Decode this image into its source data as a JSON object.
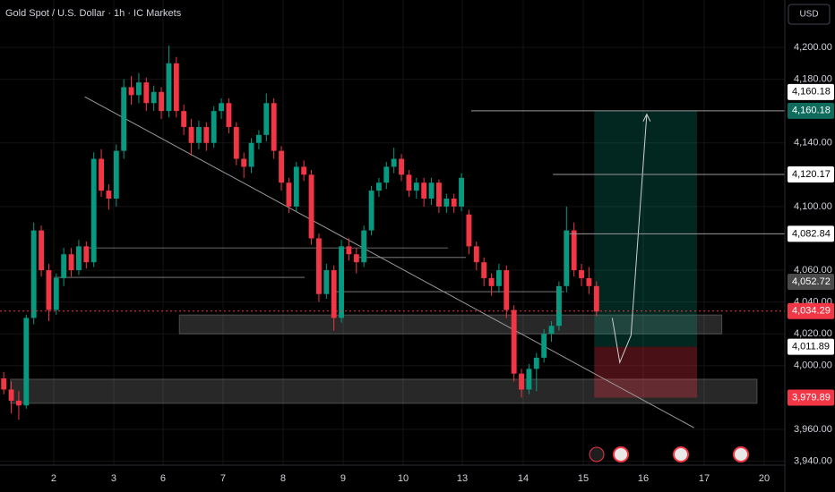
{
  "chart_data": {
    "type": "candlestick",
    "title": "Gold Spot / U.S. Dollar · 1h · IC Markets",
    "currency": "USD",
    "ylim": [
      3920.6,
      4229.8
    ],
    "xlim": [
      0,
      104.6
    ],
    "grid": true,
    "up_color": "#089981",
    "down_color": "#f23645",
    "yticks": [
      {
        "value": 4200,
        "label": "4,200.00"
      },
      {
        "value": 4180,
        "label": "4,180.00"
      },
      {
        "value": 4140,
        "label": "4,140.00"
      },
      {
        "value": 4100,
        "label": "4,100.00"
      },
      {
        "value": 4060,
        "label": "4,060.00"
      },
      {
        "value": 4040,
        "label": "4,040.00"
      },
      {
        "value": 4020,
        "label": "4,020.00"
      },
      {
        "value": 4000,
        "label": "4,000.00"
      },
      {
        "value": 3960,
        "label": "3,960.00"
      },
      {
        "value": 3940,
        "label": "3,940.00"
      }
    ],
    "xticks": [
      {
        "value": 7.16,
        "label": "2"
      },
      {
        "value": 15.16,
        "label": "3"
      },
      {
        "value": 21.73,
        "label": "6"
      },
      {
        "value": 29.73,
        "label": "7"
      },
      {
        "value": 37.73,
        "label": "8"
      },
      {
        "value": 45.73,
        "label": "9"
      },
      {
        "value": 53.73,
        "label": "10"
      },
      {
        "value": 61.61,
        "label": "13"
      },
      {
        "value": 69.73,
        "label": "14"
      },
      {
        "value": 77.73,
        "label": "15"
      },
      {
        "value": 85.73,
        "label": "16"
      },
      {
        "value": 93.85,
        "label": "17"
      },
      {
        "value": 101.85,
        "label": "20"
      }
    ],
    "candles": [
      [
        3992,
        3996,
        3982,
        3985
      ],
      [
        3985,
        3990,
        3970,
        3978
      ],
      [
        3978,
        3984,
        3966,
        3975
      ],
      [
        3975,
        4032,
        3973,
        4030
      ],
      [
        4030,
        4090,
        4026,
        4085
      ],
      [
        4085,
        4088,
        4056,
        4060
      ],
      [
        4060,
        4064,
        4028,
        4035
      ],
      [
        4035,
        4058,
        4032,
        4055
      ],
      [
        4055,
        4074,
        4050,
        4070
      ],
      [
        4070,
        4074,
        4056,
        4060
      ],
      [
        4060,
        4079,
        4057,
        4075
      ],
      [
        4075,
        4078,
        4061,
        4065
      ],
      [
        4065,
        4134,
        4062,
        4130
      ],
      [
        4130,
        4136,
        4106,
        4110
      ],
      [
        4110,
        4114,
        4098,
        4105
      ],
      [
        4105,
        4139,
        4100,
        4135
      ],
      [
        4135,
        4180,
        4130,
        4175
      ],
      [
        4175,
        4182,
        4164,
        4170
      ],
      [
        4170,
        4184,
        4165,
        4178
      ],
      [
        4178,
        4181,
        4160,
        4165
      ],
      [
        4165,
        4176,
        4160,
        4172
      ],
      [
        4172,
        4175,
        4155,
        4160
      ],
      [
        4160,
        4201,
        4156,
        4190
      ],
      [
        4190,
        4194,
        4156,
        4160
      ],
      [
        4160,
        4164,
        4145,
        4150
      ],
      [
        4150,
        4155,
        4132,
        4140
      ],
      [
        4140,
        4154,
        4136,
        4150
      ],
      [
        4150,
        4153,
        4135,
        4140
      ],
      [
        4140,
        4163,
        4137,
        4160
      ],
      [
        4160,
        4168,
        4155,
        4165
      ],
      [
        4165,
        4168,
        4146,
        4150
      ],
      [
        4150,
        4153,
        4126,
        4130
      ],
      [
        4130,
        4134,
        4118,
        4125
      ],
      [
        4125,
        4143,
        4121,
        4140
      ],
      [
        4140,
        4148,
        4136,
        4145
      ],
      [
        4145,
        4171,
        4141,
        4165
      ],
      [
        4165,
        4168,
        4130,
        4135
      ],
      [
        4135,
        4138,
        4110,
        4115
      ],
      [
        4115,
        4118,
        4096,
        4100
      ],
      [
        4100,
        4128,
        4097,
        4125
      ],
      [
        4125,
        4129,
        4116,
        4120
      ],
      [
        4120,
        4123,
        4076,
        4080
      ],
      [
        4080,
        4083,
        4040,
        4045
      ],
      [
        4045,
        4064,
        4042,
        4060
      ],
      [
        4060,
        4063,
        4022,
        4030
      ],
      [
        4030,
        4079,
        4027,
        4075
      ],
      [
        4075,
        4080,
        4066,
        4070
      ],
      [
        4070,
        4074,
        4058,
        4065
      ],
      [
        4065,
        4088,
        4062,
        4085
      ],
      [
        4085,
        4113,
        4082,
        4110
      ],
      [
        4110,
        4118,
        4106,
        4115
      ],
      [
        4115,
        4128,
        4111,
        4125
      ],
      [
        4125,
        4137,
        4121,
        4130
      ],
      [
        4130,
        4133,
        4116,
        4120
      ],
      [
        4120,
        4123,
        4106,
        4110
      ],
      [
        4110,
        4118,
        4105,
        4115
      ],
      [
        4115,
        4118,
        4100,
        4105
      ],
      [
        4105,
        4118,
        4101,
        4115
      ],
      [
        4115,
        4117,
        4096,
        4100
      ],
      [
        4100,
        4108,
        4096,
        4105
      ],
      [
        4105,
        4108,
        4096,
        4100
      ],
      [
        4100,
        4121,
        4097,
        4118
      ],
      [
        4095,
        4098,
        4070,
        4075
      ],
      [
        4075,
        4078,
        4060,
        4065
      ],
      [
        4065,
        4068,
        4050,
        4055
      ],
      [
        4055,
        4058,
        4044,
        4050
      ],
      [
        4050,
        4064,
        4046,
        4060
      ],
      [
        4060,
        4063,
        4030,
        4035
      ],
      [
        4035,
        4038,
        3990,
        3995
      ],
      [
        3995,
        3998,
        3980,
        3985
      ],
      [
        3985,
        4001,
        3982,
        3998
      ],
      [
        3998,
        4008,
        3984,
        4005
      ],
      [
        4005,
        4023,
        4002,
        4020
      ],
      [
        4020,
        4028,
        4015,
        4025
      ],
      [
        4025,
        4053,
        4022,
        4050
      ],
      [
        4050,
        4100,
        4046,
        4085
      ],
      [
        4085,
        4090,
        4056,
        4060
      ],
      [
        4060,
        4064,
        4050,
        4055
      ],
      [
        4055,
        4062,
        4045,
        4050
      ],
      [
        4050,
        4053,
        4031,
        4034
      ]
    ],
    "zones": [
      {
        "x": [
          23.9,
          96.2
        ],
        "y": [
          4020,
          4031.9
        ]
      },
      {
        "x": [
          1.4,
          100.9
        ],
        "y": [
          3976.3,
          3991.5
        ]
      }
    ],
    "levels": [
      {
        "x": [
          11.9,
          59.7
        ],
        "value": 4074
      },
      {
        "x": [
          7.2,
          40.6
        ],
        "value": 4055.5
      },
      {
        "x": [
          44.8,
          75.2
        ],
        "value": 4046.5
      },
      {
        "x": [
          47.8,
          62.1
        ],
        "value": 4068
      }
    ],
    "trendline": {
      "x": [
        11.3,
        92.5
      ],
      "y": [
        4169,
        3961
      ]
    },
    "projection": {
      "x": [
        81.6,
        82.6,
        84.1,
        86.2
      ],
      "y": [
        4030,
        4002,
        4019,
        4158
      ]
    },
    "position": {
      "x": [
        79.2,
        92.9
      ],
      "target": 4160.18,
      "entry": 4011.89,
      "stop": 3979.89
    },
    "price_tags": [
      {
        "value": 4160.18,
        "label": "4,160.18",
        "color": "#ffffff",
        "text_color": "#000000"
      },
      {
        "value": 4160.18,
        "label": "4,160.18",
        "color": "#0f6b5c",
        "text_color": "#ffffff",
        "line_start": 62.8
      },
      {
        "value": 4120.17,
        "label": "4,120.17",
        "color": "#ffffff",
        "text_color": "#000000",
        "line_start": 73.7
      },
      {
        "value": 4082.84,
        "label": "4,082.84",
        "color": "#ffffff",
        "text_color": "#000000",
        "line_start": 75.9
      },
      {
        "value": 4052.72,
        "label": "4,052.72",
        "color": "#4a4a4a",
        "text_color": "#ffffff"
      },
      {
        "value": 4034.29,
        "label": "4,034.29",
        "color": "#f23645",
        "text_color": "#ffffff",
        "line_start": 0,
        "dashed": true
      },
      {
        "value": 4011.89,
        "label": "4,011.89",
        "color": "#ffffff",
        "text_color": "#000000"
      },
      {
        "value": 3979.89,
        "label": "3,979.89",
        "color": "#f23645",
        "text_color": "#ffffff"
      }
    ]
  }
}
